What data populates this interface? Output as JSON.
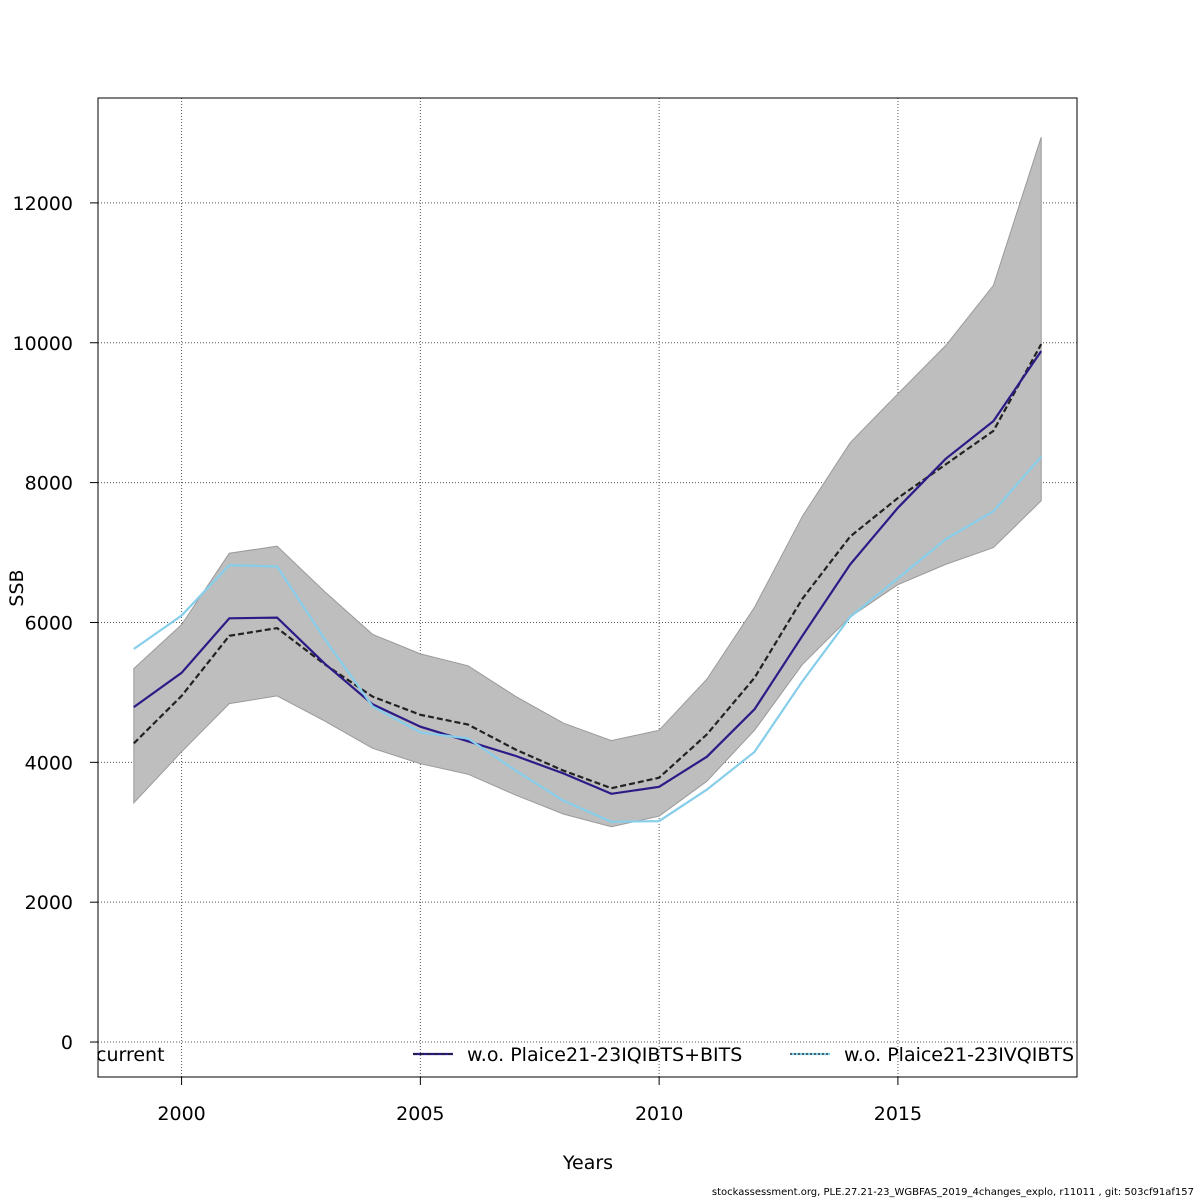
{
  "footer_text": "stockassessment.org, PLE.27.21-23_WGBFAS_2019_4changes_explo, r11011 , git: 503cf91af157",
  "chart_data": {
    "type": "line",
    "xlabel": "Years",
    "ylabel": "SSB",
    "xlim": [
      1998.25,
      2018.75
    ],
    "ylim": [
      -500,
      13500
    ],
    "x_ticks": [
      2000,
      2005,
      2010,
      2015
    ],
    "y_ticks": [
      0,
      2000,
      4000,
      6000,
      8000,
      10000,
      12000
    ],
    "grid": true,
    "legend_position": "bottom",
    "x": [
      1999,
      2000,
      2001,
      2002,
      2003,
      2004,
      2005,
      2006,
      2007,
      2008,
      2009,
      2010,
      2011,
      2012,
      2013,
      2014,
      2015,
      2016,
      2017,
      2018
    ],
    "confidence_band": {
      "color": "#bebebe",
      "lower": [
        3420,
        4150,
        4840,
        4950,
        4590,
        4200,
        3980,
        3830,
        3530,
        3260,
        3080,
        3230,
        3730,
        4460,
        5400,
        6080,
        6540,
        6830,
        7070,
        7740
      ],
      "upper": [
        5340,
        5970,
        6990,
        7090,
        6440,
        5830,
        5550,
        5380,
        4940,
        4560,
        4310,
        4460,
        5190,
        6220,
        7520,
        8570,
        9270,
        9960,
        10820,
        12940
      ]
    },
    "series": [
      {
        "name": "current",
        "color": "#222222",
        "style": "dashed",
        "values": [
          4270,
          4950,
          5810,
          5920,
          5400,
          4940,
          4680,
          4540,
          4180,
          3880,
          3630,
          3780,
          4400,
          5210,
          6340,
          7230,
          7780,
          8260,
          8740,
          9980
        ]
      },
      {
        "name": "w.o. Plaice21-23IQIBTS+BITS",
        "color": "#2e1a87",
        "style": "solid",
        "values": [
          4790,
          5280,
          6060,
          6070,
          5410,
          4830,
          4510,
          4300,
          4090,
          3840,
          3550,
          3650,
          4080,
          4760,
          5810,
          6830,
          7640,
          8340,
          8880,
          9880
        ]
      },
      {
        "name": "w.o. Plaice21-23IVQIBTS",
        "color": "#87ceeb",
        "style": "solid",
        "values": [
          5620,
          6100,
          6820,
          6800,
          5760,
          4800,
          4430,
          4340,
          3880,
          3450,
          3150,
          3160,
          3610,
          4150,
          5160,
          6080,
          6630,
          7190,
          7590,
          8370
        ]
      }
    ]
  }
}
